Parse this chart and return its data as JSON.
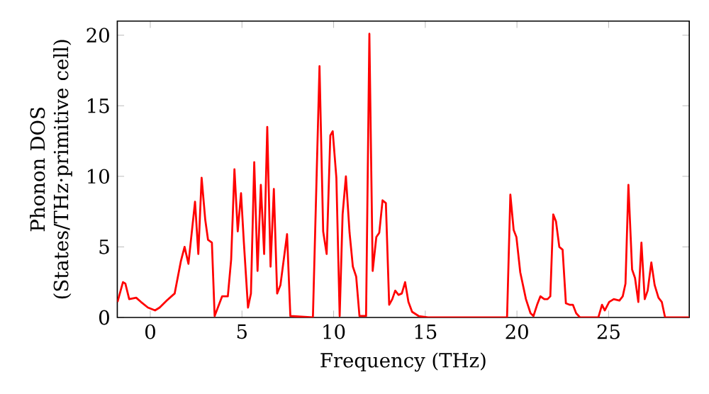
{
  "chart_data": {
    "type": "line",
    "xlabel": "Frequency (THz)",
    "ylabel": "Phonon DOS (States/THz·primitive cell)",
    "color": "#ff0000",
    "xlim": [
      -1.8,
      29.4
    ],
    "ylim": [
      0,
      21
    ],
    "xticks": [
      0,
      5,
      10,
      15,
      20,
      25
    ],
    "yticks": [
      0,
      5,
      10,
      15,
      20
    ],
    "x": [
      -1.79,
      -1.49,
      -1.36,
      -1.15,
      -0.77,
      -0.51,
      -0.13,
      0.26,
      0.51,
      0.9,
      1.33,
      1.67,
      1.87,
      2.08,
      2.44,
      2.62,
      2.8,
      3.0,
      3.15,
      3.36,
      3.51,
      3.92,
      4.23,
      4.41,
      4.59,
      4.77,
      4.95,
      5.1,
      5.33,
      5.49,
      5.67,
      5.85,
      6.03,
      6.21,
      6.38,
      6.56,
      6.74,
      6.92,
      7.1,
      7.46,
      7.64,
      8.87,
      9.23,
      9.43,
      9.62,
      9.82,
      9.95,
      10.15,
      10.33,
      10.49,
      10.67,
      10.87,
      11.05,
      11.23,
      11.41,
      11.77,
      11.95,
      12.13,
      12.33,
      12.49,
      12.67,
      12.85,
      13.03,
      13.2,
      13.36,
      13.54,
      13.72,
      13.9,
      14.08,
      14.28,
      14.64,
      15.15,
      19.46,
      19.64,
      19.82,
      19.97,
      20.18,
      20.49,
      20.74,
      20.9,
      21.1,
      21.28,
      21.49,
      21.67,
      21.82,
      21.98,
      22.13,
      22.31,
      22.49,
      22.67,
      22.87,
      23.05,
      23.23,
      23.44,
      24.44,
      24.64,
      24.79,
      25.03,
      25.28,
      25.59,
      25.77,
      25.92,
      26.08,
      26.28,
      26.44,
      26.62,
      26.79,
      26.97,
      27.13,
      27.33,
      27.51,
      27.72,
      27.9,
      28.08,
      29.4
    ],
    "values": [
      1.1,
      2.5,
      2.4,
      1.3,
      1.4,
      1.1,
      0.7,
      0.5,
      0.7,
      1.2,
      1.7,
      4.0,
      5.0,
      3.8,
      8.2,
      4.5,
      9.9,
      6.9,
      5.5,
      5.3,
      0.1,
      1.5,
      1.5,
      4.1,
      10.5,
      6.1,
      8.8,
      5.4,
      0.7,
      1.7,
      11.0,
      3.3,
      9.4,
      4.5,
      13.5,
      3.6,
      9.1,
      1.7,
      2.3,
      5.9,
      0.1,
      0,
      17.8,
      6.1,
      4.5,
      12.9,
      13.2,
      9.9,
      0.1,
      7.3,
      10.0,
      6.0,
      3.6,
      2.9,
      0.1,
      0.1,
      20.1,
      3.3,
      5.7,
      6.0,
      8.3,
      8.1,
      0.9,
      1.3,
      1.9,
      1.6,
      1.7,
      2.5,
      1.1,
      0.4,
      0.1,
      0,
      0,
      8.7,
      6.2,
      5.7,
      3.2,
      1.3,
      0.3,
      0.1,
      0.9,
      1.5,
      1.3,
      1.3,
      1.5,
      7.3,
      6.8,
      5.0,
      4.8,
      1.0,
      0.9,
      0.9,
      0.3,
      0,
      0,
      0.9,
      0.5,
      1.1,
      1.3,
      1.2,
      1.5,
      2.4,
      9.4,
      3.4,
      2.8,
      1.1,
      5.3,
      1.3,
      1.9,
      3.9,
      2.3,
      1.4,
      1.1,
      0,
      0
    ]
  }
}
